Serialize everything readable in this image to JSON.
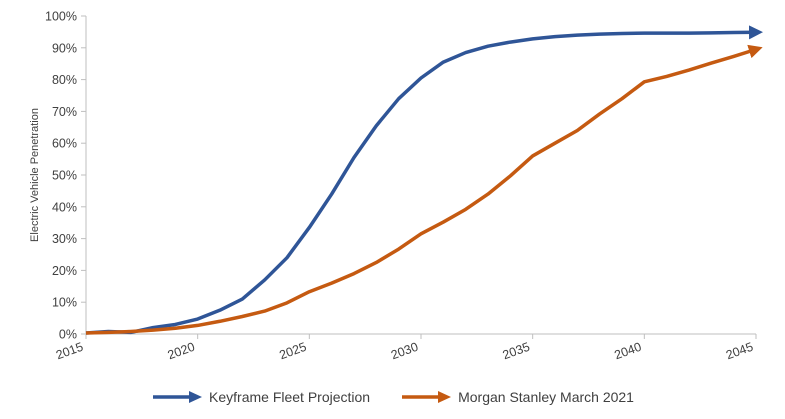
{
  "chart_data": {
    "type": "line",
    "ylabel": "Electric Vehicle Penetration",
    "xlabel": "",
    "xlim": [
      2015,
      2045
    ],
    "ylim": [
      0,
      1
    ],
    "xticks": [
      2015,
      2020,
      2025,
      2030,
      2035,
      2040,
      2045
    ],
    "xtick_labels": [
      "2015",
      "2020",
      "2025",
      "2030",
      "2035",
      "2040",
      "2045"
    ],
    "yticks": [
      0,
      0.1,
      0.2,
      0.3,
      0.4,
      0.5,
      0.6,
      0.7,
      0.8,
      0.9,
      1.0
    ],
    "ytick_labels": [
      "0%",
      "10%",
      "20%",
      "30%",
      "40%",
      "50%",
      "60%",
      "70%",
      "80%",
      "90%",
      "100%"
    ],
    "grid": false,
    "legend_position": "bottom",
    "line_end_style": "arrow",
    "series": [
      {
        "name": "Keyframe Fleet Projection",
        "color": "#2F5597",
        "x": [
          2015,
          2016,
          2017,
          2018,
          2019,
          2020,
          2021,
          2022,
          2023,
          2024,
          2025,
          2026,
          2027,
          2028,
          2029,
          2030,
          2031,
          2032,
          2033,
          2034,
          2035,
          2036,
          2037,
          2038,
          2039,
          2040,
          2041,
          2042,
          2043,
          2044,
          2045
        ],
        "y": [
          0.003,
          0.008,
          0.005,
          0.02,
          0.03,
          0.047,
          0.075,
          0.11,
          0.17,
          0.24,
          0.335,
          0.44,
          0.555,
          0.655,
          0.74,
          0.805,
          0.855,
          0.885,
          0.905,
          0.918,
          0.928,
          0.935,
          0.94,
          0.943,
          0.945,
          0.946,
          0.946,
          0.946,
          0.947,
          0.948,
          0.949
        ]
      },
      {
        "name": "Morgan Stanley March 2021",
        "color": "#C55A11",
        "x": [
          2015,
          2016,
          2017,
          2018,
          2019,
          2020,
          2021,
          2022,
          2023,
          2024,
          2025,
          2026,
          2027,
          2028,
          2029,
          2030,
          2031,
          2032,
          2033,
          2034,
          2035,
          2036,
          2037,
          2038,
          2039,
          2040,
          2041,
          2042,
          2043,
          2044,
          2045
        ],
        "y": [
          0.003,
          0.005,
          0.008,
          0.012,
          0.018,
          0.027,
          0.04,
          0.055,
          0.072,
          0.098,
          0.133,
          0.16,
          0.19,
          0.225,
          0.267,
          0.315,
          0.352,
          0.392,
          0.44,
          0.497,
          0.56,
          0.6,
          0.64,
          0.692,
          0.74,
          0.793,
          0.81,
          0.83,
          0.852,
          0.873,
          0.895
        ]
      }
    ]
  }
}
